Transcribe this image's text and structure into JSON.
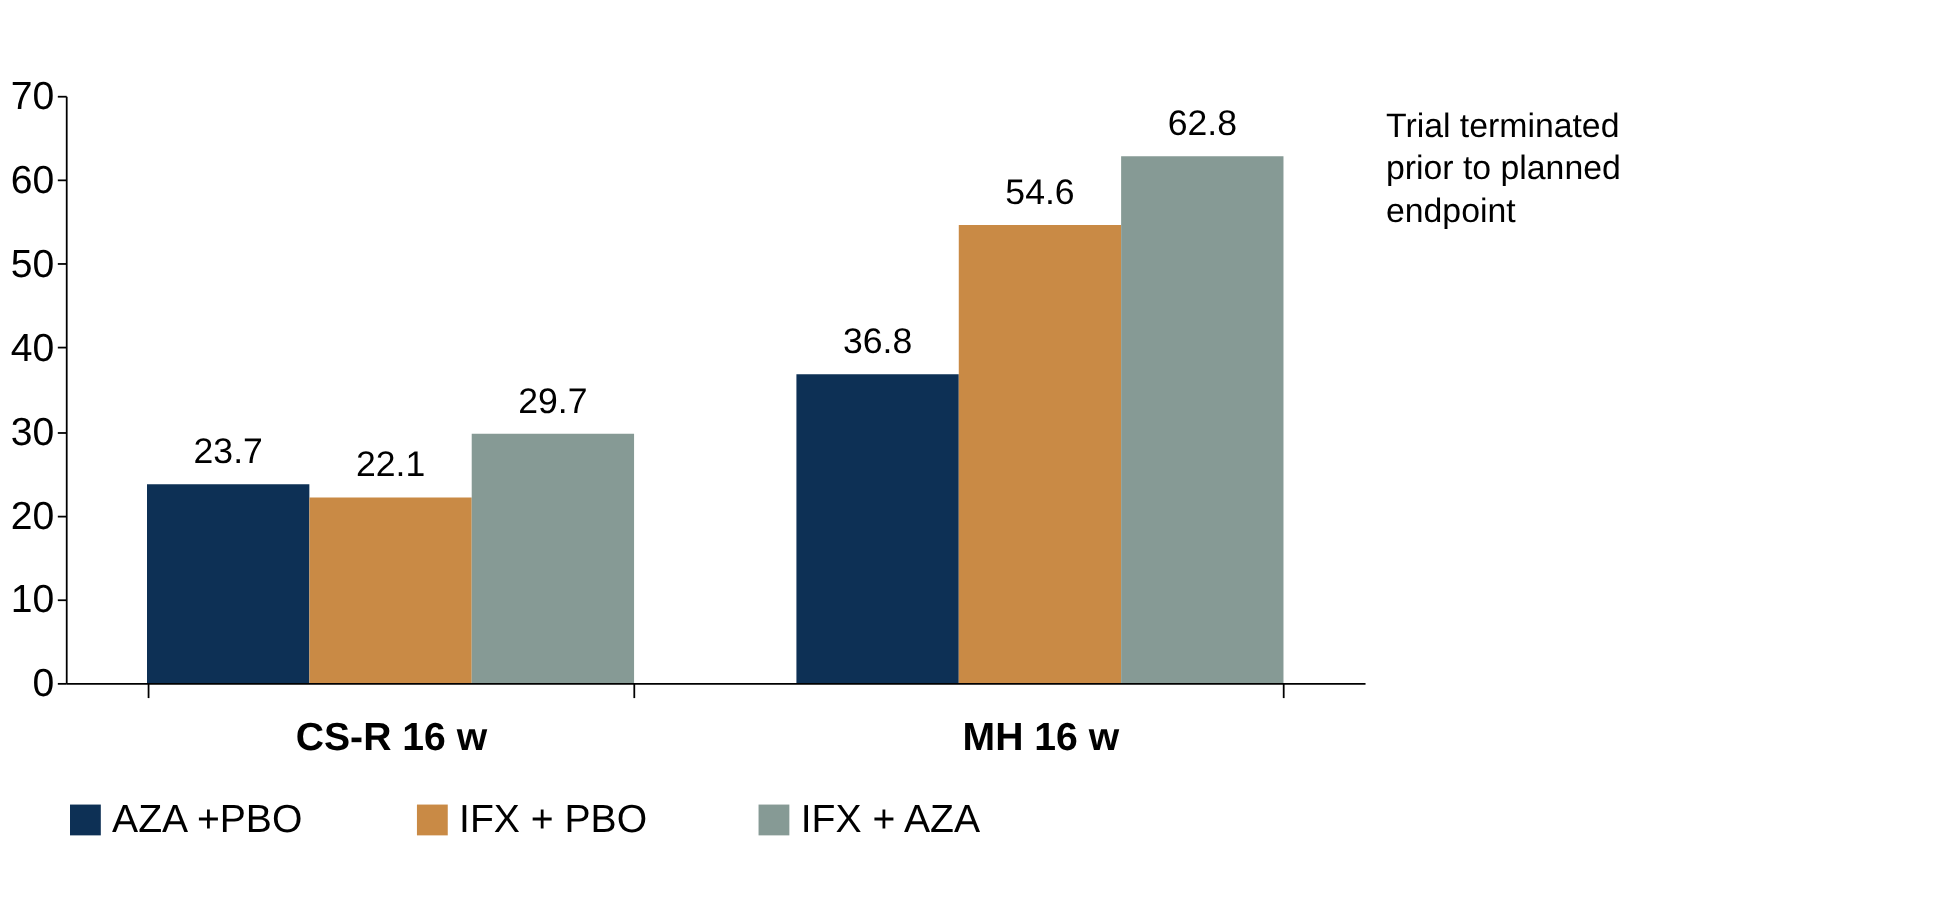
{
  "chart_data": {
    "type": "bar",
    "categories": [
      "CS-R 16 w",
      "MH 16 w"
    ],
    "series": [
      {
        "name": "AZA +PBO",
        "color": "#0d3055",
        "values": [
          23.7,
          36.8
        ]
      },
      {
        "name": "IFX + PBO",
        "color": "#c98a45",
        "values": [
          22.1,
          54.6
        ]
      },
      {
        "name": "IFX + AZA",
        "color": "#869a95",
        "values": [
          29.7,
          62.8
        ]
      }
    ],
    "ylim": [
      0,
      70
    ],
    "yticks": [
      0,
      10,
      20,
      30,
      40,
      50,
      60,
      70
    ],
    "grid": false,
    "legend": "bottom",
    "data_labels": true,
    "annotations": [
      "Trial terminated prior to planned endpoint"
    ]
  }
}
